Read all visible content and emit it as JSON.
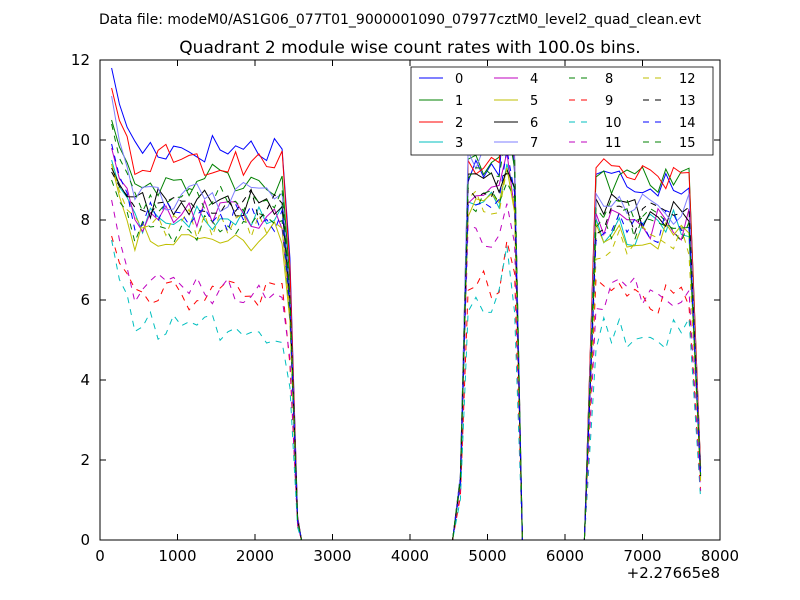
{
  "chart_data": {
    "type": "line",
    "suptitle": "Data file: modeM0/AS1G06_077T01_9000001090_07977cztM0_level2_quad_clean.evt",
    "title": "Quadrant 2 module wise count rates with 100.0s bins.",
    "xlabel": "",
    "ylabel": "",
    "x_offset_label": "+2.27665e8",
    "xlim": [
      0,
      8000
    ],
    "ylim": [
      0,
      12
    ],
    "xticks": [
      "0",
      "1000",
      "2000",
      "3000",
      "4000",
      "5000",
      "6000",
      "7000",
      "8000"
    ],
    "yticks": [
      "0",
      "2",
      "4",
      "6",
      "8",
      "10",
      "12"
    ],
    "legend_position": "top-right",
    "segments": [
      [
        150,
        2350
      ],
      [
        4750,
        5350
      ],
      [
        6400,
        7650
      ]
    ],
    "series": [
      {
        "name": "0",
        "color": "#0000ff",
        "style": "solid",
        "base": [
          9.8,
          9.3,
          9.0
        ],
        "peak": 11.8
      },
      {
        "name": "1",
        "color": "#008000",
        "style": "solid",
        "base": [
          9.0,
          9.3,
          8.9
        ],
        "peak": 10.5
      },
      {
        "name": "2",
        "color": "#ff0000",
        "style": "solid",
        "base": [
          9.5,
          9.4,
          9.1
        ],
        "peak": 11.3
      },
      {
        "name": "3",
        "color": "#00bfbf",
        "style": "solid",
        "base": [
          8.0,
          8.5,
          7.8
        ],
        "peak": 9.5
      },
      {
        "name": "4",
        "color": "#bf00bf",
        "style": "solid",
        "base": [
          8.1,
          8.6,
          7.9
        ],
        "peak": 9.8
      },
      {
        "name": "5",
        "color": "#bfbf00",
        "style": "solid",
        "base": [
          7.6,
          8.4,
          7.6
        ],
        "peak": 9.4
      },
      {
        "name": "6",
        "color": "#000000",
        "style": "solid",
        "base": [
          8.4,
          8.9,
          8.2
        ],
        "peak": 9.3
      },
      {
        "name": "7",
        "color": "#7f7fff",
        "style": "solid",
        "base": [
          8.6,
          9.6,
          8.3
        ],
        "peak": 11.1
      },
      {
        "name": "8",
        "color": "#008000",
        "style": "dashed",
        "base": [
          7.8,
          8.4,
          7.9
        ],
        "peak": 9.0
      },
      {
        "name": "9",
        "color": "#ff0000",
        "style": "dashed",
        "base": [
          6.1,
          6.4,
          6.1
        ],
        "peak": 7.6
      },
      {
        "name": "10",
        "color": "#00bfbf",
        "style": "dashed",
        "base": [
          5.3,
          6.0,
          5.2
        ],
        "peak": 7.5
      },
      {
        "name": "11",
        "color": "#bf00bf",
        "style": "dashed",
        "base": [
          6.3,
          7.6,
          6.2
        ],
        "peak": 8.5
      },
      {
        "name": "12",
        "color": "#bfbf00",
        "style": "dashed",
        "base": [
          7.9,
          8.4,
          7.4
        ],
        "peak": 9.4
      },
      {
        "name": "13",
        "color": "#000000",
        "style": "dashed",
        "base": [
          8.4,
          8.8,
          8.0
        ],
        "peak": 9.2
      },
      {
        "name": "14",
        "color": "#0000ff",
        "style": "dashed",
        "base": [
          8.1,
          8.5,
          7.8
        ],
        "peak": 9.9
      },
      {
        "name": "15",
        "color": "#008000",
        "style": "dashed",
        "base": [
          8.5,
          9.3,
          8.1
        ],
        "peak": 10.4
      }
    ]
  }
}
